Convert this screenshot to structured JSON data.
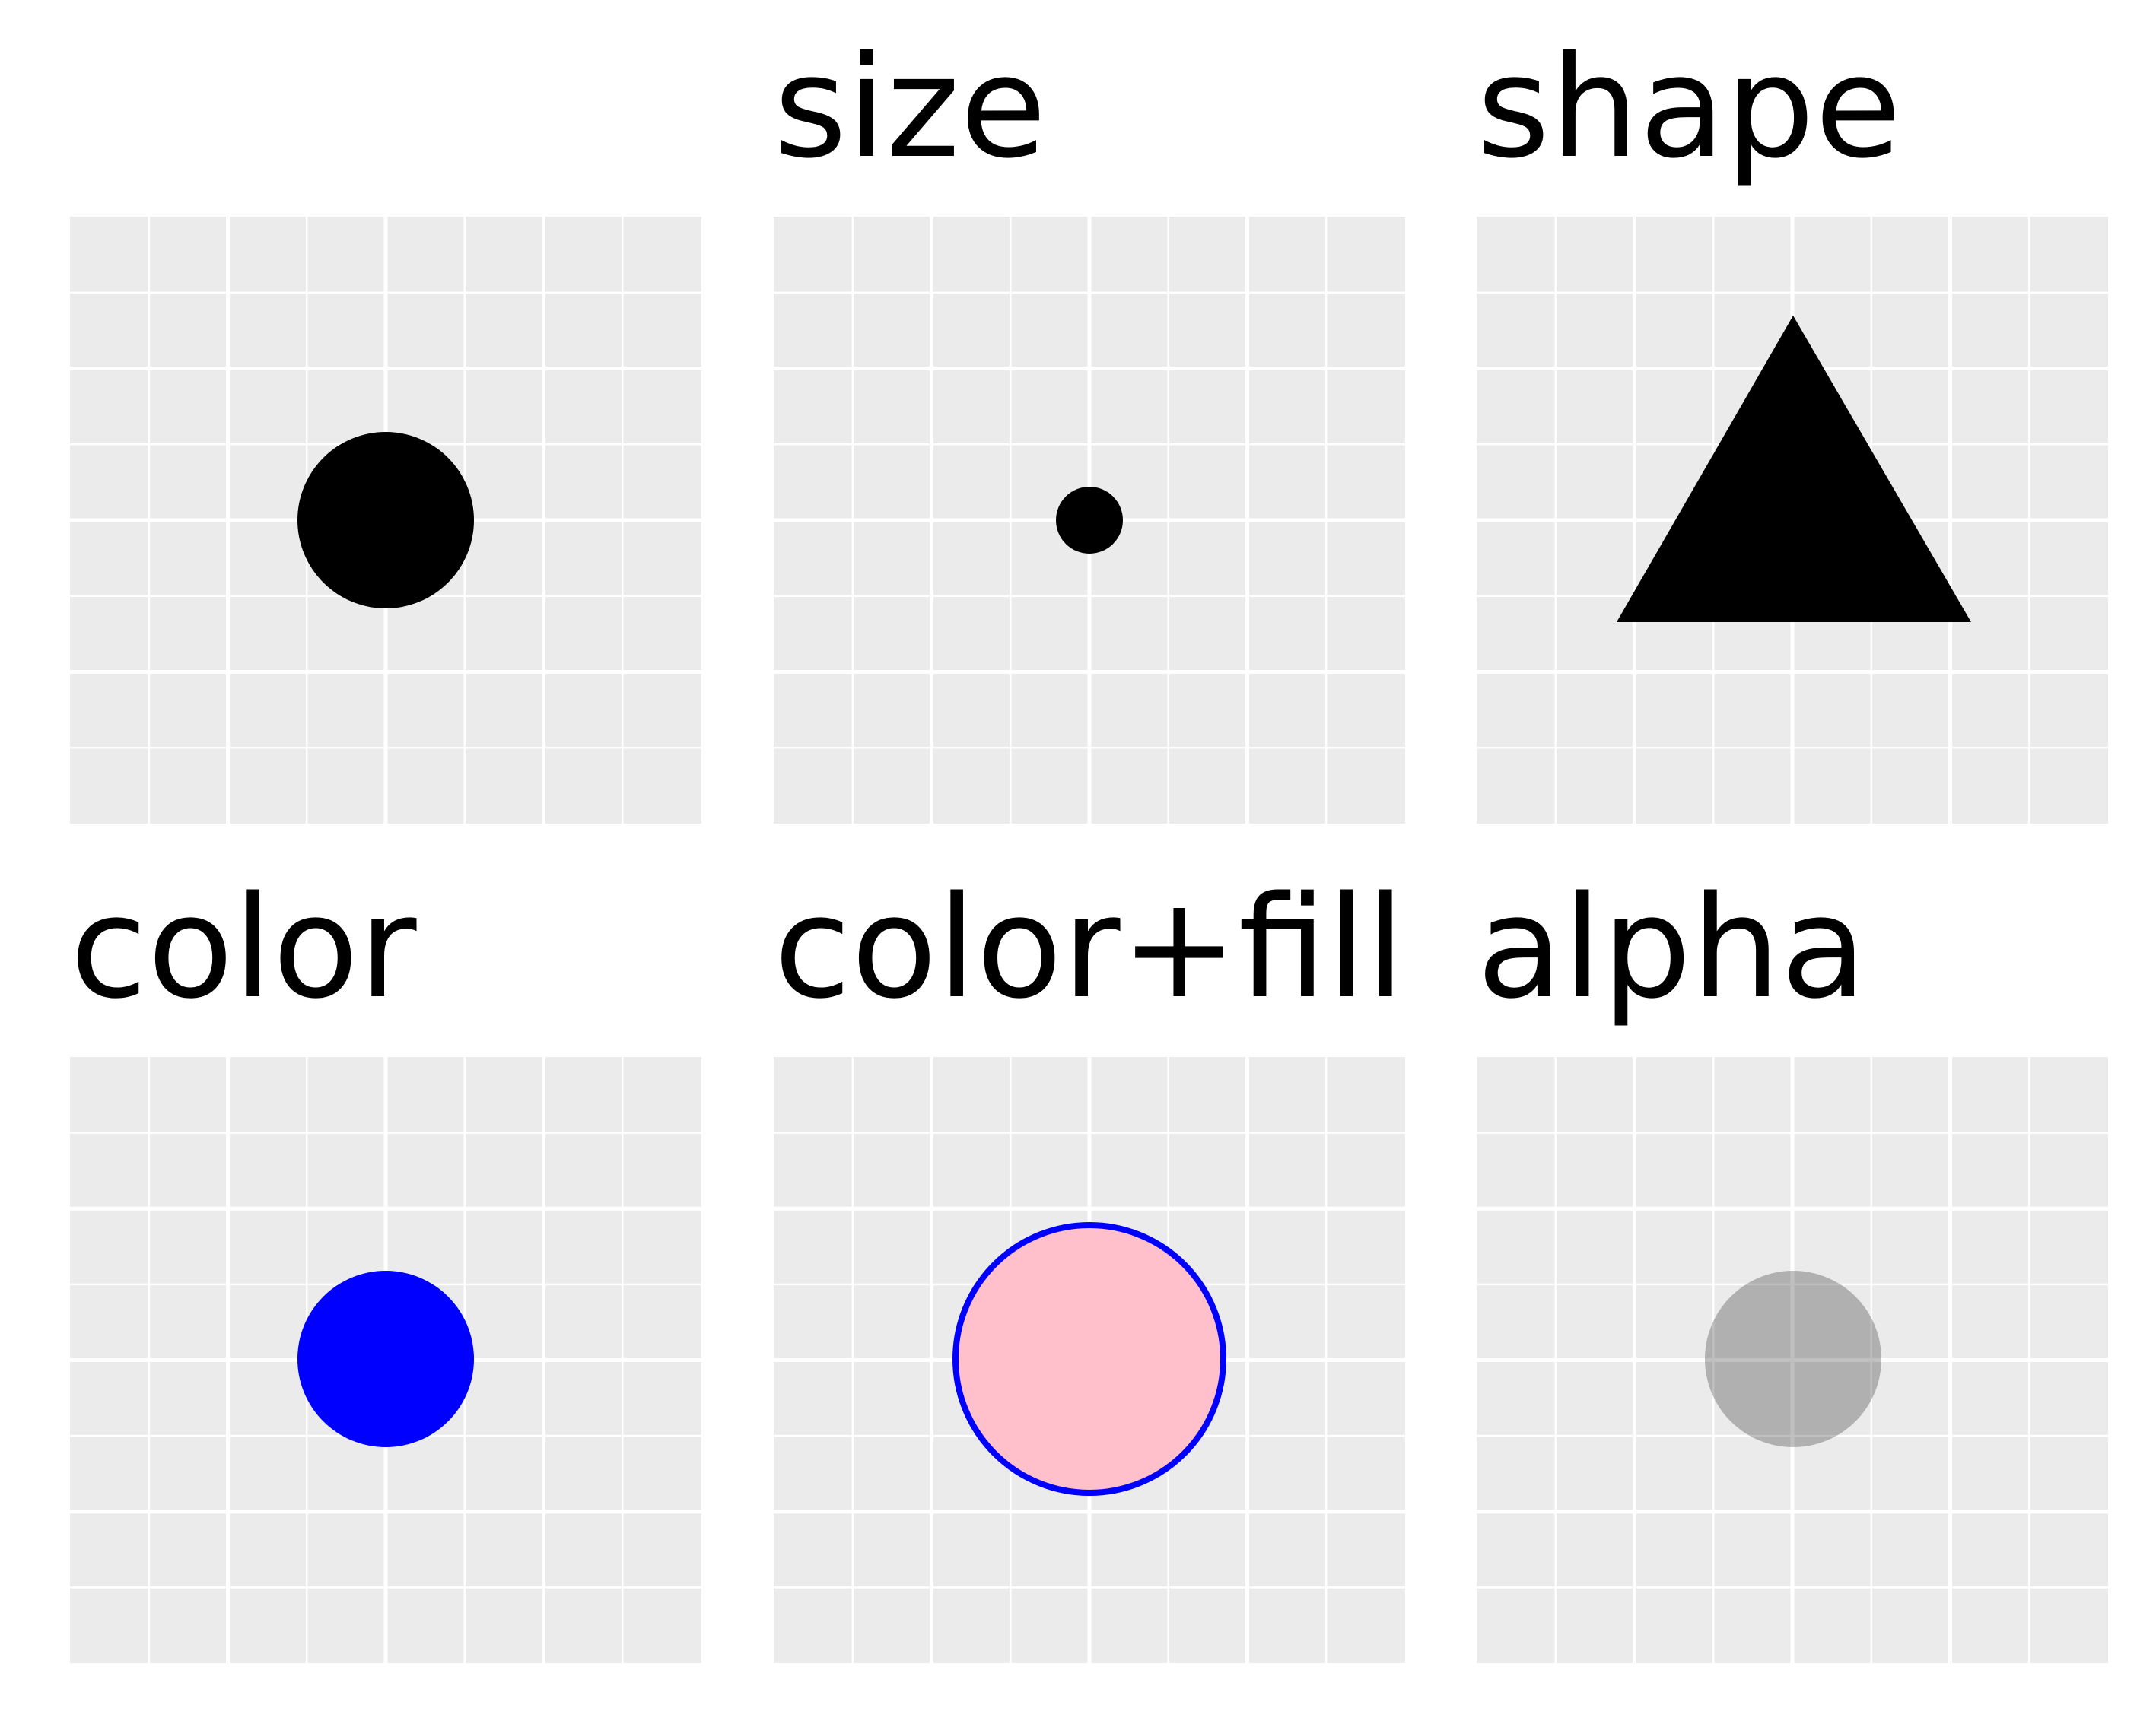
{
  "panels": [
    {
      "id": "default",
      "title": "",
      "mark": {
        "shape": "circle",
        "fill": "#000000",
        "stroke": "none",
        "opacity": 1
      }
    },
    {
      "id": "size",
      "title": "size",
      "mark": {
        "shape": "circle",
        "fill": "#000000",
        "stroke": "none",
        "opacity": 1
      }
    },
    {
      "id": "shape",
      "title": "shape",
      "mark": {
        "shape": "triangle",
        "fill": "#000000",
        "stroke": "none",
        "opacity": 1
      }
    },
    {
      "id": "color",
      "title": "color",
      "mark": {
        "shape": "circle",
        "fill": "#0000ff",
        "stroke": "none",
        "opacity": 1
      }
    },
    {
      "id": "color-fill",
      "title": "color+fill",
      "mark": {
        "shape": "circle",
        "fill": "#ffc0cb",
        "stroke": "#0000ff",
        "opacity": 1
      }
    },
    {
      "id": "alpha",
      "title": "alpha",
      "mark": {
        "shape": "circle",
        "fill": "#000000",
        "stroke": "none",
        "opacity": 0.25
      }
    }
  ],
  "colors": {
    "panel_background": "#ebebeb",
    "grid_line": "#ffffff",
    "page_background": "#ffffff"
  }
}
